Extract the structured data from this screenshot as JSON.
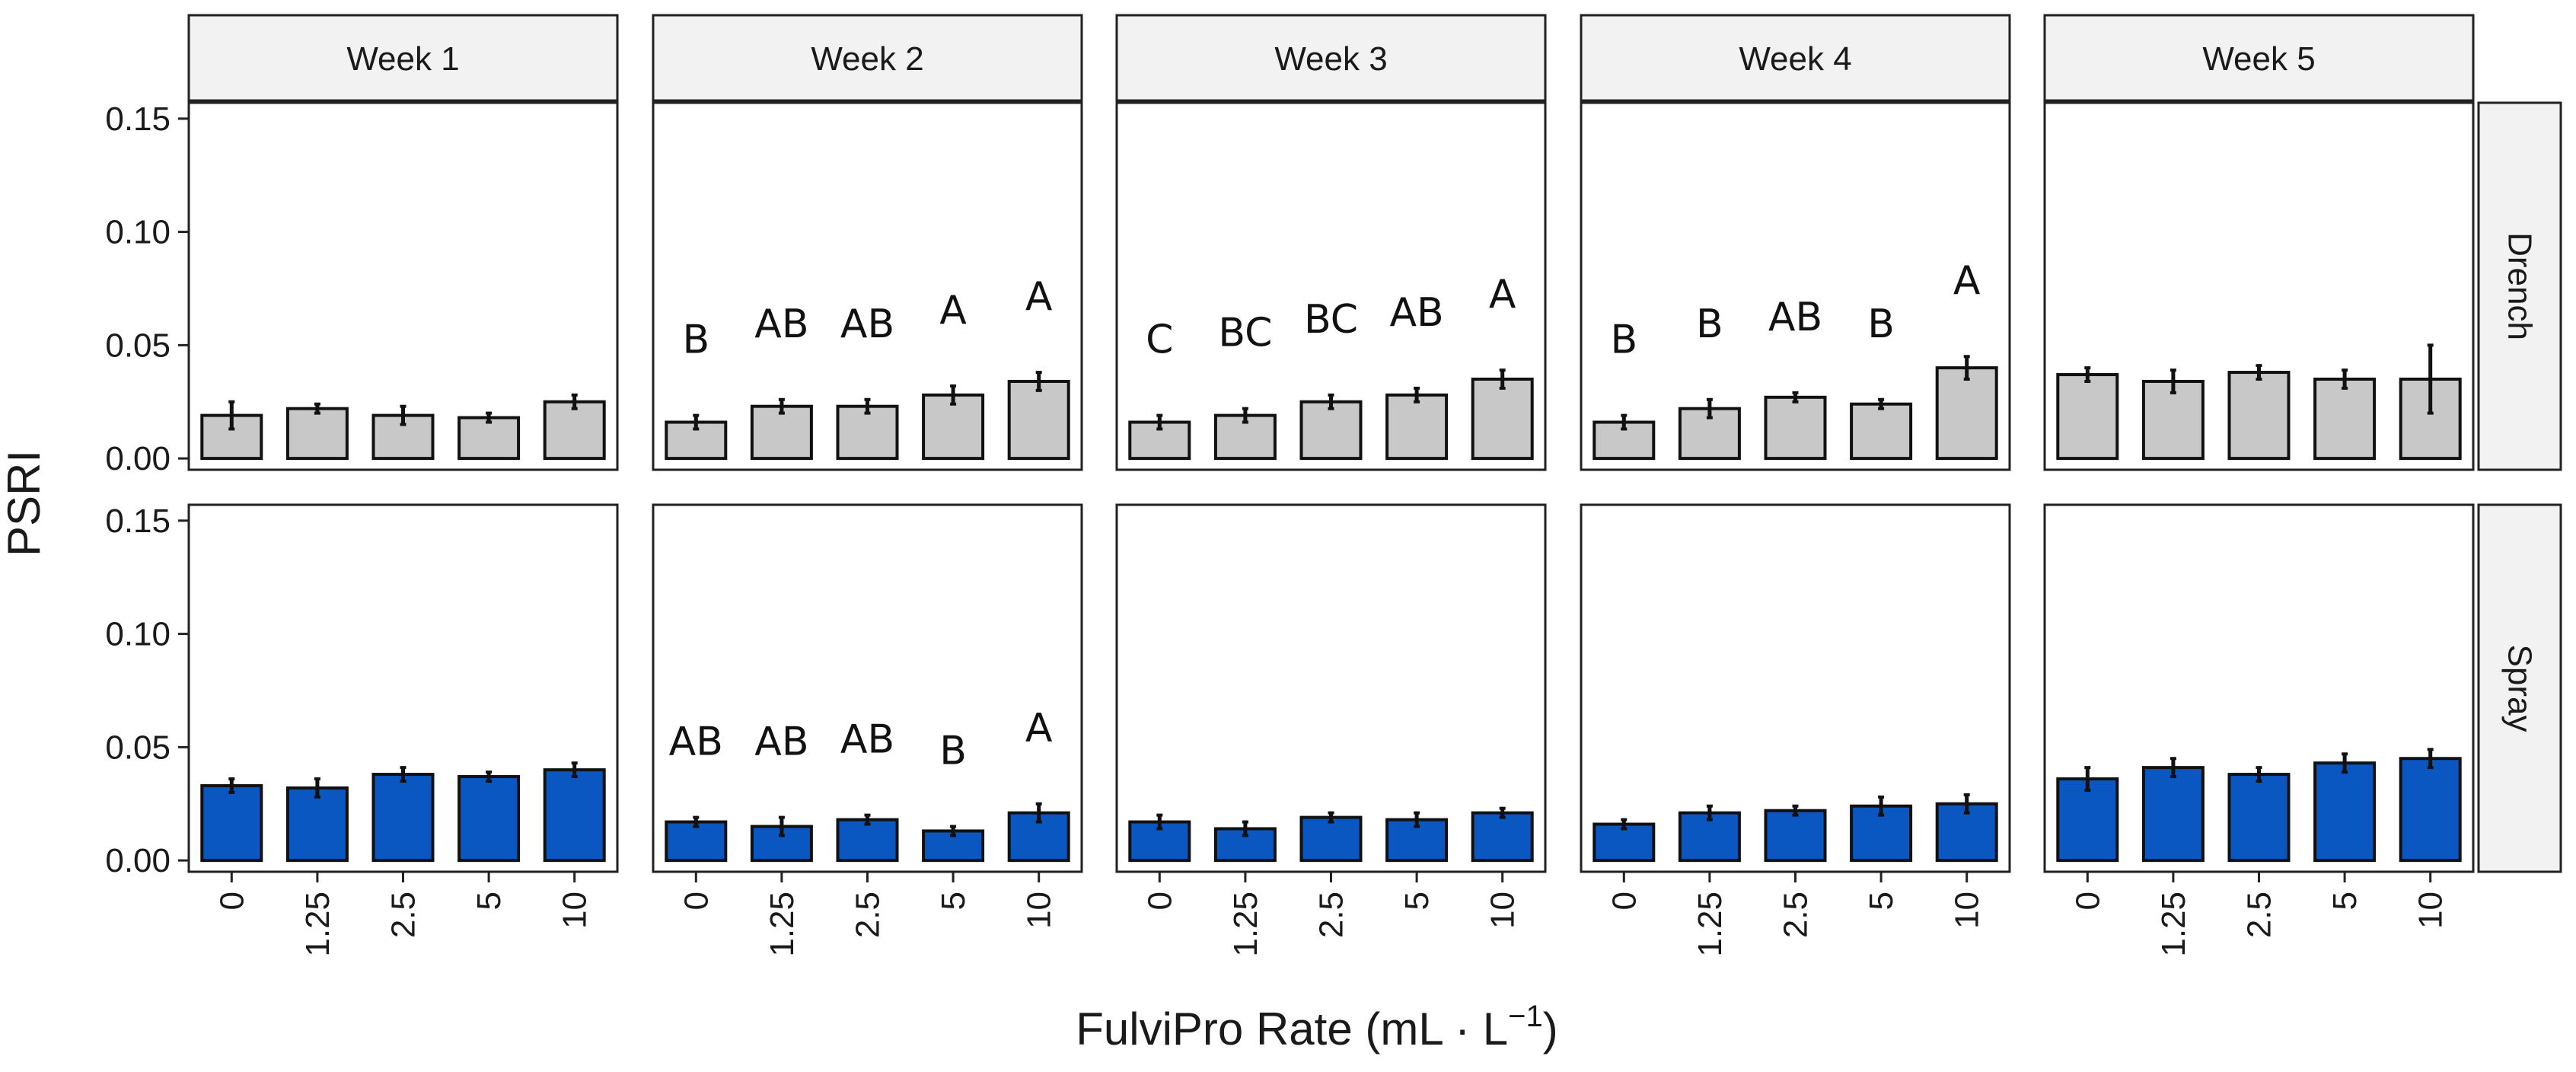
{
  "chart_data": {
    "type": "bar",
    "title": "",
    "xlabel": "FulviPro Rate (mL · L",
    "xlabel_sup": "−1",
    "xlabel_close": ")",
    "ylabel": "PSRI",
    "ylim": [
      -0.005,
      0.157
    ],
    "yticks": [
      "0.00",
      "0.05",
      "0.10",
      "0.15"
    ],
    "ytick_values": [
      0,
      0.05,
      0.1,
      0.15
    ],
    "categories": [
      "0",
      "1.25",
      "2.5",
      "5",
      "10"
    ],
    "columns": [
      "Week 1",
      "Week 2",
      "Week 3",
      "Week 4",
      "Week 5"
    ],
    "rows": [
      "Drench",
      "Spray"
    ],
    "colors": {
      "Drench": "#c8c8c8",
      "Spray": "#0a57c2"
    },
    "panels": [
      {
        "row": "Drench",
        "column": "Week 1",
        "values": [
          0.019,
          0.022,
          0.019,
          0.018,
          0.025
        ],
        "errors": [
          0.006,
          0.002,
          0.004,
          0.002,
          0.003
        ],
        "letters": []
      },
      {
        "row": "Drench",
        "column": "Week 2",
        "values": [
          0.016,
          0.023,
          0.023,
          0.028,
          0.034
        ],
        "errors": [
          0.003,
          0.003,
          0.003,
          0.004,
          0.004
        ],
        "letters": [
          "B",
          "AB",
          "AB",
          "A",
          "A"
        ]
      },
      {
        "row": "Drench",
        "column": "Week 3",
        "values": [
          0.016,
          0.019,
          0.025,
          0.028,
          0.035
        ],
        "errors": [
          0.003,
          0.003,
          0.003,
          0.003,
          0.004
        ],
        "letters": [
          "C",
          "BC",
          "BC",
          "AB",
          "A"
        ]
      },
      {
        "row": "Drench",
        "column": "Week 4",
        "values": [
          0.016,
          0.022,
          0.027,
          0.024,
          0.04
        ],
        "errors": [
          0.003,
          0.004,
          0.002,
          0.002,
          0.005
        ],
        "letters": [
          "B",
          "B",
          "AB",
          "B",
          "A"
        ]
      },
      {
        "row": "Drench",
        "column": "Week 5",
        "values": [
          0.037,
          0.034,
          0.038,
          0.035,
          0.035
        ],
        "errors": [
          0.003,
          0.005,
          0.003,
          0.004,
          0.015
        ],
        "letters": []
      },
      {
        "row": "Spray",
        "column": "Week 1",
        "values": [
          0.033,
          0.032,
          0.038,
          0.037,
          0.04
        ],
        "errors": [
          0.003,
          0.004,
          0.003,
          0.002,
          0.003
        ],
        "letters": []
      },
      {
        "row": "Spray",
        "column": "Week 2",
        "values": [
          0.017,
          0.015,
          0.018,
          0.013,
          0.021
        ],
        "errors": [
          0.002,
          0.004,
          0.002,
          0.002,
          0.004
        ],
        "letters": [
          "AB",
          "AB",
          "AB",
          "B",
          "A"
        ]
      },
      {
        "row": "Spray",
        "column": "Week 3",
        "values": [
          0.017,
          0.014,
          0.019,
          0.018,
          0.021
        ],
        "errors": [
          0.003,
          0.003,
          0.002,
          0.003,
          0.002
        ],
        "letters": []
      },
      {
        "row": "Spray",
        "column": "Week 4",
        "values": [
          0.016,
          0.021,
          0.022,
          0.024,
          0.025
        ],
        "errors": [
          0.002,
          0.003,
          0.002,
          0.004,
          0.004
        ],
        "letters": []
      },
      {
        "row": "Spray",
        "column": "Week 5",
        "values": [
          0.036,
          0.041,
          0.038,
          0.043,
          0.045
        ],
        "errors": [
          0.005,
          0.004,
          0.003,
          0.004,
          0.004
        ],
        "letters": []
      }
    ]
  }
}
